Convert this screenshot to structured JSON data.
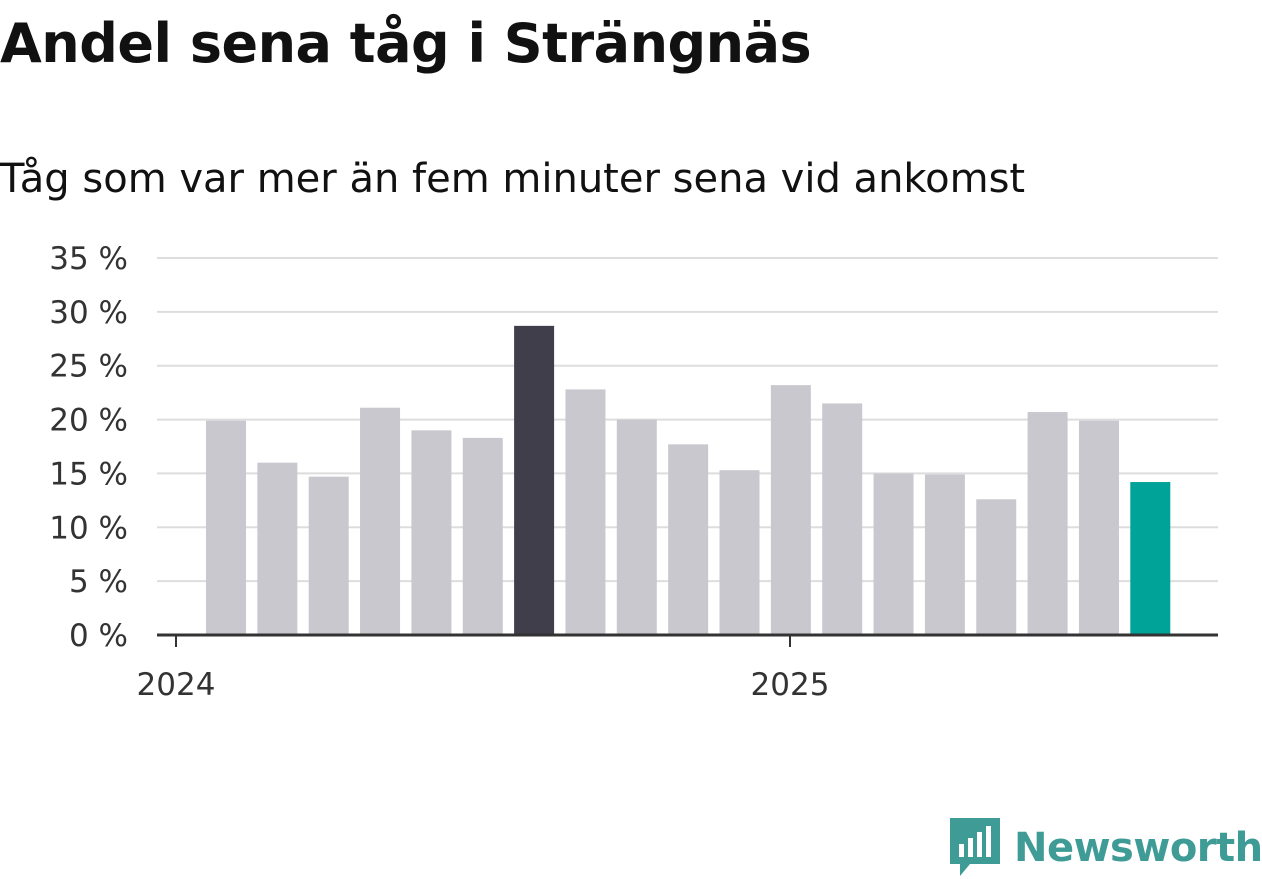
{
  "chart_data": {
    "type": "bar",
    "title": "Andel sena tåg i Strängnäs",
    "subtitle": "Tåg som var mer än fem minuter sena vid ankomst",
    "x_tick_labels": [
      "2024",
      "2025"
    ],
    "y_ticks": [
      0,
      5,
      10,
      15,
      20,
      25,
      30,
      35
    ],
    "y_tick_labels": [
      "0 %",
      "5 %",
      "10 %",
      "15 %",
      "20 %",
      "25 %",
      "30 %",
      "35 %"
    ],
    "ylim": [
      0,
      35
    ],
    "grid": true,
    "colors": {
      "default_bar": "#c9c8cf",
      "highlight_bar": "#403e4b",
      "latest_bar": "#00a398",
      "gridline": "#dddddd",
      "axis": "#333333"
    },
    "series": [
      {
        "values": [
          19.9,
          16.0,
          14.7,
          21.1,
          19.0,
          18.3,
          28.7,
          22.8,
          20.0,
          17.7,
          15.3,
          23.2,
          21.5,
          15.0,
          14.9,
          12.6,
          20.7,
          19.9,
          14.2
        ],
        "highlight_index": 6,
        "latest_index": 18
      }
    ]
  },
  "brand": {
    "name": "Newsworthy",
    "icon": "newsworthy-logo-icon",
    "color": "#3f9b95"
  }
}
